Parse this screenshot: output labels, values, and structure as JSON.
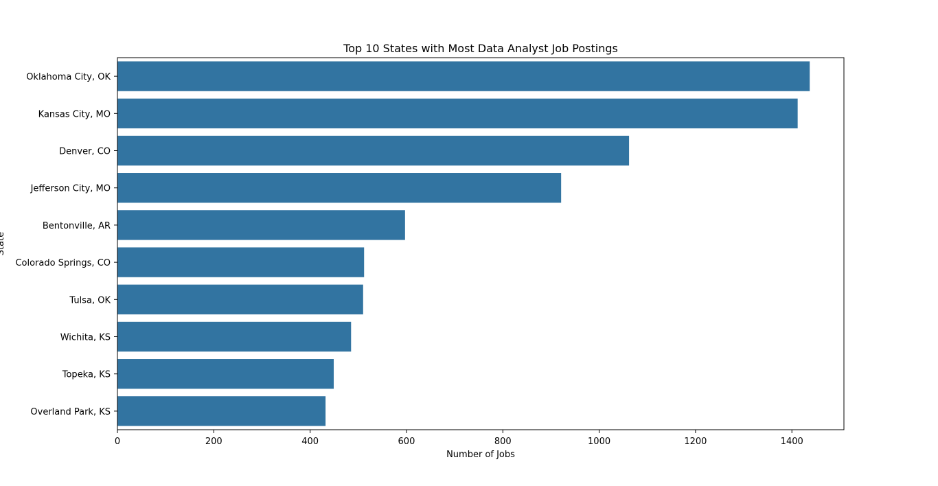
{
  "chart_data": {
    "type": "bar",
    "orientation": "horizontal",
    "title": "Top 10 States with Most Data Analyst Job Postings",
    "xlabel": "Number of Jobs",
    "ylabel": "State",
    "categories": [
      "Oklahoma City, OK",
      "Kansas City, MO",
      "Denver, CO",
      "Jefferson City, MO",
      "Bentonville, AR",
      "Colorado Springs, CO",
      "Tulsa, OK",
      "Wichita, KS",
      "Topeka, KS",
      "Overland Park, KS"
    ],
    "values": [
      1437,
      1412,
      1062,
      921,
      597,
      512,
      510,
      485,
      449,
      432
    ],
    "xlim": [
      0,
      1508
    ],
    "xticks": [
      0,
      200,
      400,
      600,
      800,
      1000,
      1200,
      1400
    ],
    "grid": false,
    "bar_color": "#3274a1"
  }
}
